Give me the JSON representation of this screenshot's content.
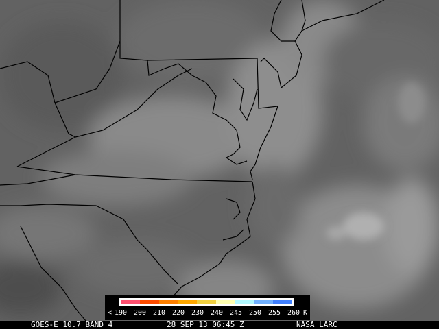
{
  "legend": {
    "colors": [
      "#ff5070",
      "#ff4c00",
      "#ff8000",
      "#ffa800",
      "#f0d040",
      "#ffffb0",
      "#b0f8ff",
      "#70b0ff",
      "#4080ff"
    ],
    "less_than": "<",
    "ticks": [
      "190",
      "200",
      "210",
      "220",
      "230",
      "240",
      "245",
      "250",
      "255",
      "260"
    ],
    "unit": "K"
  },
  "footer": {
    "satellite": "GOES-E 10.7 BAND 4",
    "datetime": "28 SEP 13 06:45 Z",
    "source": "NASA LARC"
  }
}
